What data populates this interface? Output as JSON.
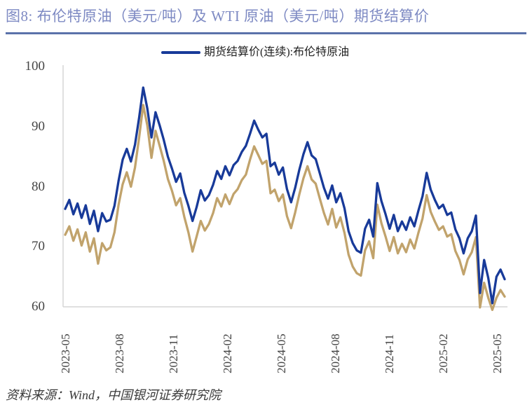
{
  "header": {
    "title": "图8: 布伦特原油（美元/吨）及 WTI 原油（美元/吨）期货结算价"
  },
  "legend": {
    "label": "期货结算价(连续):布伦特原油"
  },
  "footer": {
    "source": "资料来源：Wind，中国银河证券研究院"
  },
  "colors": {
    "brent_line": "#183a99",
    "wti_line": "#c1a36c",
    "title_text": "#7e8ac3",
    "divider": "#5b72aa",
    "axis_line": "#d6d6d6",
    "tick_text": "#454545"
  },
  "chart_data": {
    "type": "line",
    "title": "布伦特原油及WTI原油期货结算价",
    "xlabel": "",
    "ylabel": "",
    "ylim": [
      60,
      100
    ],
    "y_ticks": [
      60,
      70,
      80,
      90,
      100
    ],
    "x_tick_labels": [
      "2023-05",
      "2023-08",
      "2023-11",
      "2024-02",
      "2024-05",
      "2024-08",
      "2024-11",
      "2025-02",
      "2025-05"
    ],
    "grid": false,
    "legend_position": "top-center",
    "legend_entries": [
      "期货结算价(连续):布伦特原油"
    ],
    "series": [
      {
        "name": "期货结算价(连续):布伦特原油",
        "color": "#183a99",
        "values": [
          76.3,
          77.8,
          75.4,
          77.2,
          74.8,
          76.9,
          73.8,
          76.0,
          72.6,
          75.6,
          74.2,
          74.5,
          76.8,
          81.0,
          84.5,
          86.3,
          84.2,
          87.0,
          91.5,
          96.5,
          93.0,
          88.2,
          92.4,
          90.2,
          87.8,
          85.0,
          83.0,
          80.8,
          82.2,
          79.0,
          76.8,
          74.3,
          76.6,
          79.4,
          77.7,
          78.6,
          80.3,
          82.6,
          81.3,
          83.4,
          81.9,
          83.6,
          84.3,
          85.8,
          86.8,
          88.8,
          91.0,
          89.5,
          88.2,
          88.8,
          83.4,
          84.0,
          82.0,
          83.2,
          79.6,
          77.4,
          79.8,
          82.8,
          85.4,
          87.4,
          85.2,
          84.6,
          82.2,
          79.8,
          78.0,
          80.2,
          77.4,
          78.9,
          76.4,
          72.6,
          70.6,
          69.4,
          69.0,
          73.0,
          74.5,
          71.7,
          80.6,
          77.6,
          75.4,
          73.0,
          75.3,
          72.6,
          74.2,
          72.8,
          74.9,
          73.4,
          76.0,
          78.4,
          82.3,
          79.5,
          77.8,
          76.4,
          77.0,
          75.3,
          75.7,
          72.9,
          71.4,
          68.9,
          71.4,
          72.6,
          75.2,
          62.3,
          67.8,
          64.8,
          60.6,
          65.0,
          66.2,
          64.6
        ]
      },
      {
        "name": "WTI原油期货结算价",
        "color": "#c1a36c",
        "values": [
          72.0,
          73.4,
          71.0,
          72.9,
          70.2,
          72.4,
          69.2,
          71.4,
          67.2,
          70.6,
          69.4,
          69.9,
          72.4,
          77.0,
          80.4,
          82.4,
          80.0,
          83.2,
          88.2,
          93.6,
          90.2,
          84.8,
          89.3,
          86.8,
          84.3,
          81.3,
          79.3,
          76.9,
          78.1,
          75.0,
          72.4,
          69.2,
          71.7,
          74.3,
          72.7,
          73.8,
          75.6,
          78.1,
          76.7,
          78.7,
          77.1,
          78.8,
          79.6,
          81.1,
          82.0,
          84.5,
          86.7,
          85.3,
          83.8,
          84.3,
          78.9,
          79.5,
          77.6,
          78.7,
          75.1,
          73.1,
          75.7,
          78.7,
          81.4,
          83.4,
          81.2,
          80.5,
          78.0,
          75.6,
          73.7,
          76.3,
          73.2,
          74.9,
          72.3,
          68.7,
          66.7,
          65.6,
          65.2,
          69.4,
          70.9,
          68.1,
          77.0,
          73.9,
          71.7,
          69.3,
          71.6,
          68.9,
          70.5,
          69.1,
          71.2,
          69.7,
          72.3,
          74.7,
          78.6,
          75.8,
          74.2,
          72.8,
          73.4,
          71.7,
          72.1,
          69.3,
          67.8,
          65.4,
          67.9,
          69.1,
          71.6,
          59.9,
          64.0,
          61.5,
          59.5,
          61.5,
          62.8,
          61.7
        ]
      }
    ]
  }
}
